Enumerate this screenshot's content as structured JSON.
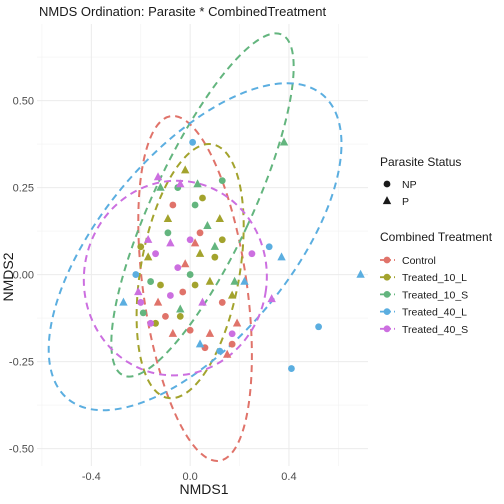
{
  "chart_data": {
    "type": "scatter",
    "title": "NMDS Ordination: Parasite * CombinedTreatment",
    "xlabel": "NMDS1",
    "ylabel": "NMDS2",
    "xlim": [
      -0.62,
      0.72
    ],
    "ylim": [
      -0.55,
      0.72
    ],
    "x_ticks": [
      -0.4,
      0.0,
      0.4
    ],
    "x_tick_labels": [
      "-0.4",
      "0.0",
      "0.4"
    ],
    "y_ticks": [
      -0.5,
      -0.25,
      0.0,
      0.25,
      0.5
    ],
    "y_tick_labels": [
      "-0.50",
      "-0.25",
      "0.00",
      "0.25",
      "0.50"
    ],
    "grid": true,
    "legend_position": "right",
    "legends": {
      "shape": {
        "title": "Parasite Status",
        "items": [
          {
            "label": "NP",
            "shape": "circle"
          },
          {
            "label": "P",
            "shape": "triangle"
          }
        ]
      },
      "color": {
        "title": "Combined Treatment",
        "items": [
          {
            "label": "Control",
            "color": "#E0736A"
          },
          {
            "label": "Treated_10_L",
            "color": "#A3A32D"
          },
          {
            "label": "Treated_10_S",
            "color": "#63B57E"
          },
          {
            "label": "Treated_40_L",
            "color": "#5BAEE0"
          },
          {
            "label": "Treated_40_S",
            "color": "#CC6FE0"
          }
        ]
      }
    },
    "series": [
      {
        "name": "Control",
        "color": "#E0736A",
        "ellipse": {
          "cx": 0.02,
          "cy": -0.04,
          "rx": 0.21,
          "ry": 0.5,
          "angle": -8
        },
        "points": [
          {
            "x": -0.07,
            "y": 0.2,
            "p": "NP"
          },
          {
            "x": 0.04,
            "y": 0.12,
            "p": "NP"
          },
          {
            "x": -0.03,
            "y": -0.05,
            "p": "NP"
          },
          {
            "x": 0.0,
            "y": -0.16,
            "p": "NP"
          },
          {
            "x": 0.13,
            "y": -0.08,
            "p": "NP"
          },
          {
            "x": 0.06,
            "y": -0.21,
            "p": "NP"
          },
          {
            "x": -0.1,
            "y": -0.12,
            "p": "NP"
          },
          {
            "x": 0.17,
            "y": -0.2,
            "p": "NP"
          },
          {
            "x": -0.02,
            "y": 0.03,
            "p": "P"
          },
          {
            "x": 0.08,
            "y": -0.17,
            "p": "P"
          },
          {
            "x": -0.13,
            "y": -0.08,
            "p": "P"
          },
          {
            "x": 0.19,
            "y": -0.14,
            "p": "P"
          },
          {
            "x": -0.07,
            "y": -0.17,
            "p": "P"
          },
          {
            "x": 0.15,
            "y": -0.23,
            "p": "P"
          },
          {
            "x": 0.02,
            "y": 0.09,
            "p": "P"
          }
        ]
      },
      {
        "name": "Treated_10_L",
        "color": "#A3A32D",
        "ellipse": {
          "cx": 0.0,
          "cy": 0.01,
          "rx": 0.2,
          "ry": 0.37,
          "angle": 10
        },
        "points": [
          {
            "x": -0.2,
            "y": 0.08,
            "p": "NP"
          },
          {
            "x": -0.12,
            "y": -0.03,
            "p": "NP"
          },
          {
            "x": -0.04,
            "y": -0.12,
            "p": "NP"
          },
          {
            "x": 0.05,
            "y": 0.22,
            "p": "NP"
          },
          {
            "x": 0.13,
            "y": 0.1,
            "p": "NP"
          },
          {
            "x": -0.14,
            "y": -0.14,
            "p": "NP"
          },
          {
            "x": 0.1,
            "y": 0.05,
            "p": "NP"
          },
          {
            "x": 0.02,
            "y": -0.03,
            "p": "NP"
          },
          {
            "x": -0.02,
            "y": 0.3,
            "p": "P"
          },
          {
            "x": -0.09,
            "y": 0.16,
            "p": "P"
          },
          {
            "x": 0.04,
            "y": 0.06,
            "p": "P"
          },
          {
            "x": 0.08,
            "y": -0.02,
            "p": "P"
          },
          {
            "x": 0.17,
            "y": -0.06,
            "p": "P"
          },
          {
            "x": -0.17,
            "y": 0.05,
            "p": "P"
          },
          {
            "x": 0.12,
            "y": 0.16,
            "p": "P"
          }
        ]
      },
      {
        "name": "Treated_10_S",
        "color": "#63B57E",
        "ellipse": {
          "cx": 0.05,
          "cy": 0.2,
          "rx": 0.2,
          "ry": 0.54,
          "angle": 25
        },
        "points": [
          {
            "x": -0.05,
            "y": 0.25,
            "p": "NP"
          },
          {
            "x": -0.16,
            "y": -0.02,
            "p": "NP"
          },
          {
            "x": -0.09,
            "y": 0.12,
            "p": "NP"
          },
          {
            "x": 0.02,
            "y": 0.2,
            "p": "NP"
          },
          {
            "x": 0.13,
            "y": 0.27,
            "p": "NP"
          },
          {
            "x": -0.19,
            "y": -0.11,
            "p": "NP"
          },
          {
            "x": 0.0,
            "y": 0.0,
            "p": "NP"
          },
          {
            "x": 0.38,
            "y": 0.38,
            "p": "P"
          },
          {
            "x": 0.03,
            "y": 0.26,
            "p": "P"
          },
          {
            "x": 0.1,
            "y": 0.08,
            "p": "P"
          },
          {
            "x": -0.12,
            "y": 0.25,
            "p": "P"
          },
          {
            "x": 0.07,
            "y": 0.14,
            "p": "P"
          },
          {
            "x": 0.18,
            "y": -0.02,
            "p": "P"
          },
          {
            "x": -0.04,
            "y": -0.1,
            "p": "P"
          }
        ]
      },
      {
        "name": "Treated_40_L",
        "color": "#5BAEE0",
        "ellipse": {
          "cx": 0.02,
          "cy": 0.08,
          "rx": 0.38,
          "ry": 0.57,
          "angle": 40
        },
        "points": [
          {
            "x": 0.01,
            "y": 0.38,
            "p": "NP"
          },
          {
            "x": 0.32,
            "y": 0.08,
            "p": "NP"
          },
          {
            "x": 0.52,
            "y": -0.15,
            "p": "NP"
          },
          {
            "x": 0.41,
            "y": -0.27,
            "p": "NP"
          },
          {
            "x": 0.12,
            "y": -0.22,
            "p": "NP"
          },
          {
            "x": -0.22,
            "y": 0.0,
            "p": "NP"
          },
          {
            "x": 0.69,
            "y": 0.0,
            "p": "P"
          },
          {
            "x": 0.37,
            "y": 0.05,
            "p": "P"
          },
          {
            "x": -0.27,
            "y": -0.08,
            "p": "P"
          },
          {
            "x": 0.04,
            "y": -0.2,
            "p": "P"
          },
          {
            "x": 0.22,
            "y": -0.02,
            "p": "P"
          }
        ]
      },
      {
        "name": "Treated_40_S",
        "color": "#CC6FE0",
        "ellipse": {
          "cx": -0.06,
          "cy": -0.01,
          "rx": 0.37,
          "ry": 0.28,
          "angle": 8
        },
        "points": [
          {
            "x": -0.2,
            "y": -0.08,
            "p": "NP"
          },
          {
            "x": -0.14,
            "y": 0.06,
            "p": "NP"
          },
          {
            "x": -0.08,
            "y": -0.06,
            "p": "NP"
          },
          {
            "x": 0.0,
            "y": 0.1,
            "p": "NP"
          },
          {
            "x": 0.17,
            "y": -0.17,
            "p": "NP"
          },
          {
            "x": -0.16,
            "y": -0.14,
            "p": "NP"
          },
          {
            "x": 0.25,
            "y": 0.06,
            "p": "NP"
          },
          {
            "x": -0.05,
            "y": 0.02,
            "p": "NP"
          },
          {
            "x": -0.13,
            "y": 0.28,
            "p": "P"
          },
          {
            "x": -0.17,
            "y": 0.1,
            "p": "P"
          },
          {
            "x": -0.04,
            "y": 0.26,
            "p": "P"
          },
          {
            "x": 0.05,
            "y": -0.08,
            "p": "P"
          },
          {
            "x": 0.33,
            "y": -0.07,
            "p": "P"
          },
          {
            "x": -0.21,
            "y": -0.05,
            "p": "P"
          },
          {
            "x": -0.08,
            "y": 0.09,
            "p": "P"
          }
        ]
      }
    ]
  }
}
